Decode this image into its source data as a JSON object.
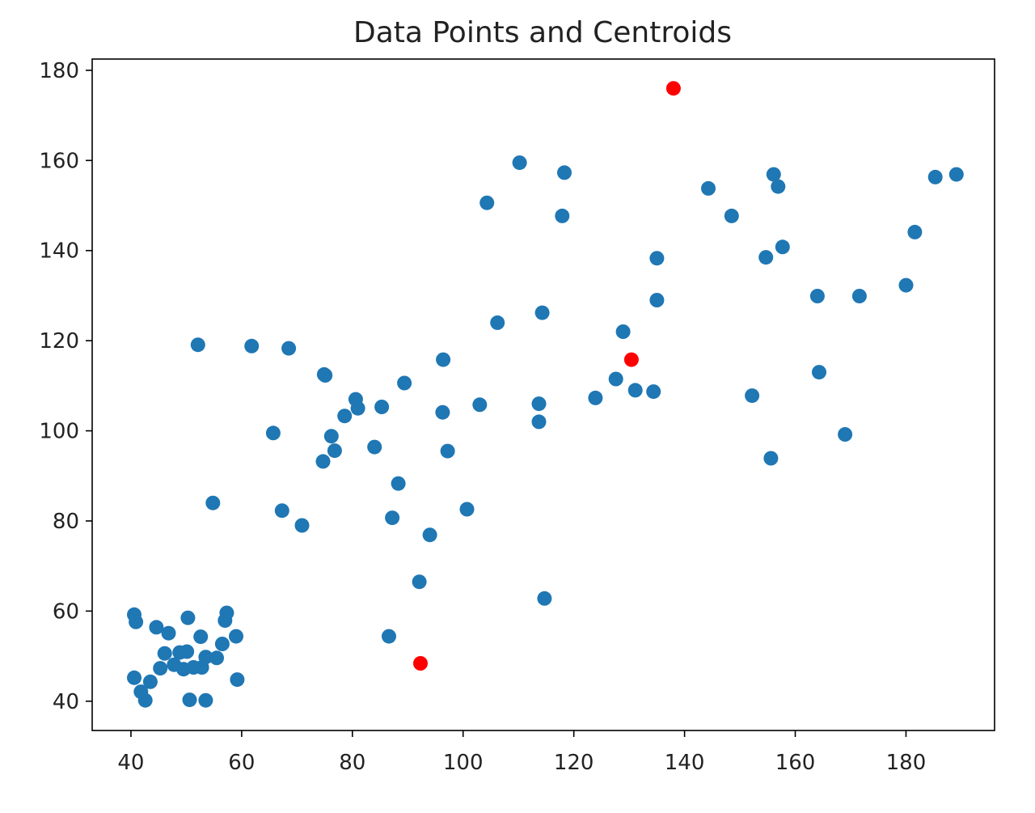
{
  "chart_data": {
    "type": "scatter",
    "title": "Data Points and Centroids",
    "xlabel": "",
    "ylabel": "",
    "xlim": [
      33,
      196
    ],
    "ylim": [
      33.5,
      182.5
    ],
    "xticks": [
      "40",
      "60",
      "80",
      "100",
      "120",
      "140",
      "160",
      "180"
    ],
    "yticks": [
      "40",
      "60",
      "80",
      "100",
      "120",
      "140",
      "160",
      "180"
    ],
    "grid": false,
    "legend": "none",
    "series": [
      {
        "color": "#1f77b4",
        "points": [
          [
            40.6,
            59.2
          ],
          [
            40.9,
            57.6
          ],
          [
            40.6,
            45.2
          ],
          [
            41.8,
            42.1
          ],
          [
            42.6,
            40.2
          ],
          [
            43.5,
            44.3
          ],
          [
            44.6,
            56.4
          ],
          [
            45.3,
            47.3
          ],
          [
            46.1,
            50.6
          ],
          [
            46.8,
            55.1
          ],
          [
            47.8,
            48.1
          ],
          [
            48.8,
            50.8
          ],
          [
            49.5,
            47.1
          ],
          [
            50.1,
            51.0
          ],
          [
            50.3,
            58.5
          ],
          [
            50.6,
            40.3
          ],
          [
            51.3,
            47.5
          ],
          [
            52.1,
            119.1
          ],
          [
            52.6,
            54.3
          ],
          [
            52.8,
            47.5
          ],
          [
            53.5,
            40.2
          ],
          [
            53.5,
            49.8
          ],
          [
            54.8,
            84.0
          ],
          [
            55.5,
            49.6
          ],
          [
            56.5,
            52.7
          ],
          [
            57.0,
            57.9
          ],
          [
            57.3,
            59.6
          ],
          [
            59.0,
            54.4
          ],
          [
            59.2,
            44.8
          ],
          [
            61.8,
            118.8
          ],
          [
            65.7,
            99.5
          ],
          [
            67.3,
            82.3
          ],
          [
            68.5,
            118.3
          ],
          [
            70.9,
            79.0
          ],
          [
            74.7,
            93.2
          ],
          [
            74.9,
            112.5
          ],
          [
            75.1,
            112.3
          ],
          [
            76.2,
            98.8
          ],
          [
            76.8,
            95.6
          ],
          [
            78.6,
            103.3
          ],
          [
            80.6,
            107.0
          ],
          [
            81.0,
            105.0
          ],
          [
            84.0,
            96.4
          ],
          [
            85.3,
            105.3
          ],
          [
            86.6,
            54.4
          ],
          [
            87.2,
            80.7
          ],
          [
            88.3,
            88.3
          ],
          [
            89.4,
            110.6
          ],
          [
            92.1,
            66.5
          ],
          [
            94.0,
            76.9
          ],
          [
            96.3,
            104.1
          ],
          [
            96.4,
            115.8
          ],
          [
            97.2,
            95.5
          ],
          [
            100.7,
            82.6
          ],
          [
            103.0,
            105.8
          ],
          [
            104.3,
            150.6
          ],
          [
            106.2,
            124.0
          ],
          [
            110.2,
            159.5
          ],
          [
            113.7,
            106.0
          ],
          [
            113.7,
            102.0
          ],
          [
            114.3,
            126.2
          ],
          [
            114.7,
            62.8
          ],
          [
            117.9,
            147.7
          ],
          [
            118.3,
            157.3
          ],
          [
            123.9,
            107.3
          ],
          [
            127.6,
            111.5
          ],
          [
            128.9,
            122.0
          ],
          [
            131.1,
            109.0
          ],
          [
            134.4,
            108.7
          ],
          [
            135.0,
            138.3
          ],
          [
            135.0,
            129.0
          ],
          [
            144.3,
            153.8
          ],
          [
            148.5,
            147.7
          ],
          [
            152.2,
            107.8
          ],
          [
            154.7,
            138.5
          ],
          [
            155.6,
            93.9
          ],
          [
            156.1,
            156.9
          ],
          [
            156.9,
            154.2
          ],
          [
            157.7,
            140.8
          ],
          [
            164.0,
            129.9
          ],
          [
            164.3,
            113.0
          ],
          [
            169.0,
            99.2
          ],
          [
            171.6,
            129.9
          ],
          [
            180.0,
            132.3
          ],
          [
            181.6,
            144.1
          ],
          [
            185.3,
            156.3
          ],
          [
            189.1,
            156.9
          ]
        ]
      },
      {
        "color": "#ff0000",
        "points": [
          [
            92.3,
            48.4
          ],
          [
            130.4,
            115.8
          ],
          [
            138.0,
            176.0
          ]
        ]
      }
    ]
  }
}
